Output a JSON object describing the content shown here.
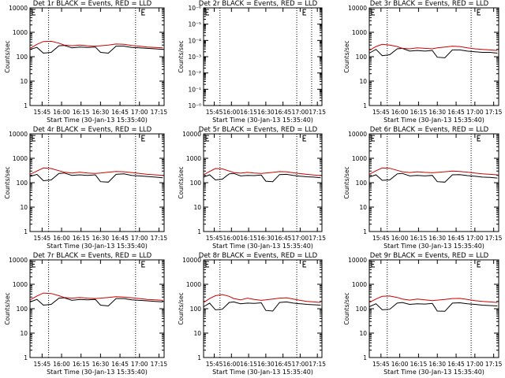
{
  "figure": {
    "xlabel": "Start Time (30-Jan-13 15:35:40)",
    "ylabel": "Counts/sec"
  },
  "chart_data": [
    {
      "type": "line",
      "title": "Det 1r BLACK = Events, RED = LLD",
      "xlabel": "Start Time (30-Jan-13 15:35:40)",
      "ylabel": "Counts/sec",
      "x_ticks": [
        "15:45",
        "16:00",
        "16:15",
        "16:30",
        "16:45",
        "17:00",
        "17:15"
      ],
      "y_ticks": [
        "1",
        "10",
        "100",
        "1000",
        "10000"
      ],
      "ylim": [
        1,
        10000
      ],
      "yscale": "log",
      "dotted_vlines": [
        "15:50",
        "16:57"
      ],
      "series": [
        {
          "color": "#000000",
          "x": [
            "15:35",
            "15:41",
            "15:46",
            "15:52",
            "15:58",
            "16:02",
            "16:08",
            "16:14",
            "16:20",
            "16:26",
            "16:30",
            "16:36",
            "16:42",
            "16:48",
            "16:54",
            "17:00",
            "17:06",
            "17:12",
            "17:18"
          ],
          "values": [
            200,
            240,
            140,
            150,
            280,
            290,
            230,
            250,
            240,
            250,
            150,
            140,
            270,
            270,
            240,
            230,
            220,
            210,
            200
          ]
        },
        {
          "color": "#cc0000",
          "x": [
            "15:35",
            "15:41",
            "15:46",
            "15:52",
            "15:58",
            "16:02",
            "16:08",
            "16:14",
            "16:20",
            "16:26",
            "16:30",
            "16:36",
            "16:42",
            "16:48",
            "16:54",
            "17:00",
            "17:06",
            "17:12",
            "17:18"
          ],
          "values": [
            220,
            320,
            420,
            430,
            360,
            300,
            280,
            300,
            280,
            270,
            280,
            300,
            330,
            320,
            290,
            270,
            250,
            240,
            230
          ]
        }
      ]
    },
    {
      "type": "line",
      "title": "Det 2r BLACK = Events, RED = LLD",
      "xlabel": "Start Time (30-Jan-13 15:35:40)",
      "ylabel": "Counts/sec",
      "x_ticks": [
        "15:45",
        "16:00",
        "16:15",
        "16:30",
        "16:45",
        "17:00",
        "17:15"
      ],
      "y_ticks": [
        "10⁻⁰",
        "10⁻¹",
        "10⁻²",
        "10⁻³",
        "10⁻⁴",
        "10⁻⁵",
        "10⁻⁶"
      ],
      "ylim": [
        1e-06,
        1
      ],
      "yscale": "log",
      "dotted_vlines": [
        "15:50",
        "16:57",
        "17:10"
      ],
      "series": []
    },
    {
      "type": "line",
      "title": "Det 3r BLACK = Events, RED = LLD",
      "xlabel": "Start Time (30-Jan-13 15:35:40)",
      "ylabel": "Counts/sec",
      "x_ticks": [
        "15:45",
        "16:00",
        "16:15",
        "16:30",
        "16:45",
        "17:00",
        "17:15"
      ],
      "y_ticks": [
        "1",
        "10",
        "100",
        "1000",
        "10000"
      ],
      "ylim": [
        1,
        10000
      ],
      "yscale": "log",
      "dotted_vlines": [
        "15:50",
        "16:57"
      ],
      "series": [
        {
          "color": "#000000",
          "x": [
            "15:35",
            "15:41",
            "15:46",
            "15:52",
            "15:58",
            "16:02",
            "16:08",
            "16:14",
            "16:20",
            "16:26",
            "16:30",
            "16:36",
            "16:42",
            "16:48",
            "16:54",
            "17:00",
            "17:06",
            "17:12",
            "17:18"
          ],
          "values": [
            140,
            200,
            110,
            120,
            210,
            220,
            170,
            180,
            170,
            180,
            95,
            90,
            190,
            190,
            170,
            160,
            150,
            150,
            140
          ]
        },
        {
          "color": "#cc0000",
          "x": [
            "15:35",
            "15:41",
            "15:46",
            "15:52",
            "15:58",
            "16:02",
            "16:08",
            "16:14",
            "16:20",
            "16:26",
            "16:30",
            "16:36",
            "16:42",
            "16:48",
            "16:54",
            "17:00",
            "17:06",
            "17:12",
            "17:18"
          ],
          "values": [
            180,
            260,
            320,
            300,
            260,
            220,
            210,
            230,
            220,
            210,
            230,
            250,
            270,
            260,
            230,
            210,
            200,
            190,
            180
          ]
        }
      ]
    },
    {
      "type": "line",
      "title": "Det 4r BLACK = Events, RED = LLD",
      "xlabel": "Start Time (30-Jan-13 15:35:40)",
      "ylabel": "Counts/sec",
      "x_ticks": [
        "15:45",
        "16:00",
        "16:15",
        "16:30",
        "16:45",
        "17:00",
        "17:15"
      ],
      "y_ticks": [
        "1",
        "10",
        "100",
        "1000",
        "10000"
      ],
      "ylim": [
        1,
        10000
      ],
      "yscale": "log",
      "dotted_vlines": [
        "15:50",
        "16:57"
      ],
      "series": [
        {
          "color": "#000000",
          "x": [
            "15:35",
            "15:41",
            "15:46",
            "15:52",
            "15:58",
            "16:02",
            "16:08",
            "16:14",
            "16:20",
            "16:26",
            "16:30",
            "16:36",
            "16:42",
            "16:48",
            "16:54",
            "17:00",
            "17:06",
            "17:12",
            "17:18"
          ],
          "values": [
            180,
            220,
            120,
            130,
            240,
            250,
            200,
            210,
            200,
            210,
            110,
            105,
            220,
            230,
            200,
            190,
            180,
            170,
            160
          ]
        },
        {
          "color": "#cc0000",
          "x": [
            "15:35",
            "15:41",
            "15:46",
            "15:52",
            "15:58",
            "16:02",
            "16:08",
            "16:14",
            "16:20",
            "16:26",
            "16:30",
            "16:36",
            "16:42",
            "16:48",
            "16:54",
            "17:00",
            "17:06",
            "17:12",
            "17:18"
          ],
          "values": [
            220,
            300,
            400,
            380,
            310,
            270,
            250,
            270,
            250,
            240,
            250,
            270,
            290,
            280,
            260,
            240,
            220,
            210,
            200
          ]
        }
      ]
    },
    {
      "type": "line",
      "title": "Det 5r BLACK = Events, RED = LLD",
      "xlabel": "Start Time (30-Jan-13 15:35:40)",
      "ylabel": "Counts/sec",
      "x_ticks": [
        "15:45",
        "16:00",
        "16:15",
        "16:30",
        "16:45",
        "17:00",
        "17:15"
      ],
      "y_ticks": [
        "1",
        "10",
        "100",
        "1000",
        "10000"
      ],
      "ylim": [
        1,
        10000
      ],
      "yscale": "log",
      "dotted_vlines": [
        "15:50",
        "16:57"
      ],
      "series": [
        {
          "color": "#000000",
          "x": [
            "15:35",
            "15:41",
            "15:46",
            "15:52",
            "15:58",
            "16:02",
            "16:08",
            "16:14",
            "16:20",
            "16:26",
            "16:30",
            "16:36",
            "16:42",
            "16:48",
            "16:54",
            "17:00",
            "17:06",
            "17:12",
            "17:18"
          ],
          "values": [
            170,
            210,
            130,
            140,
            230,
            240,
            190,
            200,
            195,
            205,
            115,
            110,
            215,
            220,
            200,
            185,
            175,
            170,
            160
          ]
        },
        {
          "color": "#cc0000",
          "x": [
            "15:35",
            "15:41",
            "15:46",
            "15:52",
            "15:58",
            "16:02",
            "16:08",
            "16:14",
            "16:20",
            "16:26",
            "16:30",
            "16:36",
            "16:42",
            "16:48",
            "16:54",
            "17:00",
            "17:06",
            "17:12",
            "17:18"
          ],
          "values": [
            210,
            290,
            380,
            370,
            300,
            260,
            245,
            265,
            250,
            240,
            250,
            265,
            285,
            280,
            255,
            235,
            220,
            205,
            195
          ]
        }
      ]
    },
    {
      "type": "line",
      "title": "Det 6r BLACK = Events, RED = LLD",
      "xlabel": "Start Time (30-Jan-13 15:35:40)",
      "ylabel": "Counts/sec",
      "x_ticks": [
        "15:45",
        "16:00",
        "16:15",
        "16:30",
        "16:45",
        "17:00",
        "17:15"
      ],
      "y_ticks": [
        "1",
        "10",
        "100",
        "1000",
        "10000"
      ],
      "ylim": [
        1,
        10000
      ],
      "yscale": "log",
      "dotted_vlines": [
        "15:50",
        "16:57"
      ],
      "series": [
        {
          "color": "#000000",
          "x": [
            "15:35",
            "15:41",
            "15:46",
            "15:52",
            "15:58",
            "16:02",
            "16:08",
            "16:14",
            "16:20",
            "16:26",
            "16:30",
            "16:36",
            "16:42",
            "16:48",
            "16:54",
            "17:00",
            "17:06",
            "17:12",
            "17:18"
          ],
          "values": [
            170,
            210,
            125,
            130,
            230,
            240,
            190,
            200,
            190,
            200,
            110,
            105,
            210,
            215,
            195,
            185,
            170,
            165,
            155
          ]
        },
        {
          "color": "#cc0000",
          "x": [
            "15:35",
            "15:41",
            "15:46",
            "15:52",
            "15:58",
            "16:02",
            "16:08",
            "16:14",
            "16:20",
            "16:26",
            "16:30",
            "16:36",
            "16:42",
            "16:48",
            "16:54",
            "17:00",
            "17:06",
            "17:12",
            "17:18"
          ],
          "values": [
            220,
            310,
            400,
            390,
            320,
            280,
            260,
            280,
            265,
            255,
            265,
            280,
            300,
            290,
            270,
            250,
            230,
            220,
            210
          ]
        }
      ]
    },
    {
      "type": "line",
      "title": "Det 7r BLACK = Events, RED = LLD",
      "xlabel": "Start Time (30-Jan-13 15:35:40)",
      "ylabel": "Counts/sec",
      "x_ticks": [
        "15:45",
        "16:00",
        "16:15",
        "16:30",
        "16:45",
        "17:00",
        "17:15"
      ],
      "y_ticks": [
        "1",
        "10",
        "100",
        "1000",
        "10000"
      ],
      "ylim": [
        1,
        10000
      ],
      "yscale": "log",
      "dotted_vlines": [
        "15:50",
        "16:57"
      ],
      "series": [
        {
          "color": "#000000",
          "x": [
            "15:35",
            "15:41",
            "15:46",
            "15:52",
            "15:58",
            "16:02",
            "16:08",
            "16:14",
            "16:20",
            "16:26",
            "16:30",
            "16:36",
            "16:42",
            "16:48",
            "16:54",
            "17:00",
            "17:06",
            "17:12",
            "17:18"
          ],
          "values": [
            190,
            240,
            140,
            150,
            270,
            280,
            220,
            240,
            230,
            240,
            140,
            130,
            260,
            260,
            230,
            220,
            210,
            200,
            190
          ]
        },
        {
          "color": "#cc0000",
          "x": [
            "15:35",
            "15:41",
            "15:46",
            "15:52",
            "15:58",
            "16:02",
            "16:08",
            "16:14",
            "16:20",
            "16:26",
            "16:30",
            "16:36",
            "16:42",
            "16:48",
            "16:54",
            "17:00",
            "17:06",
            "17:12",
            "17:18"
          ],
          "values": [
            230,
            330,
            440,
            420,
            340,
            290,
            270,
            290,
            270,
            260,
            270,
            290,
            310,
            300,
            280,
            260,
            240,
            230,
            220
          ]
        }
      ]
    },
    {
      "type": "line",
      "title": "Det 8r BLACK = Events, RED = LLD",
      "xlabel": "Start Time (30-Jan-13 15:35:40)",
      "ylabel": "Counts/sec",
      "x_ticks": [
        "15:45",
        "16:00",
        "16:15",
        "16:30",
        "16:45",
        "17:00",
        "17:15"
      ],
      "y_ticks": [
        "1",
        "10",
        "100",
        "1000",
        "10000"
      ],
      "ylim": [
        1,
        10000
      ],
      "yscale": "log",
      "dotted_vlines": [
        "15:50",
        "16:57"
      ],
      "series": [
        {
          "color": "#000000",
          "x": [
            "15:35",
            "15:41",
            "15:46",
            "15:52",
            "15:58",
            "16:02",
            "16:08",
            "16:14",
            "16:20",
            "16:26",
            "16:30",
            "16:36",
            "16:42",
            "16:48",
            "16:54",
            "17:00",
            "17:06",
            "17:12",
            "17:18"
          ],
          "values": [
            120,
            170,
            90,
            95,
            180,
            190,
            160,
            170,
            165,
            175,
            85,
            80,
            180,
            190,
            170,
            160,
            150,
            145,
            140
          ]
        },
        {
          "color": "#cc0000",
          "x": [
            "15:35",
            "15:41",
            "15:46",
            "15:52",
            "15:58",
            "16:02",
            "16:08",
            "16:14",
            "16:20",
            "16:26",
            "16:30",
            "16:36",
            "16:42",
            "16:48",
            "16:54",
            "17:00",
            "17:06",
            "17:12",
            "17:18"
          ],
          "values": [
            180,
            260,
            340,
            380,
            320,
            260,
            230,
            270,
            240,
            220,
            230,
            250,
            270,
            280,
            250,
            220,
            200,
            190,
            180
          ]
        }
      ]
    },
    {
      "type": "line",
      "title": "Det 9r BLACK = Events, RED = LLD",
      "xlabel": "Start Time (30-Jan-13 15:35:40)",
      "ylabel": "Counts/sec",
      "x_ticks": [
        "15:45",
        "16:00",
        "16:15",
        "16:30",
        "16:45",
        "17:00",
        "17:15"
      ],
      "y_ticks": [
        "1",
        "10",
        "100",
        "1000",
        "10000"
      ],
      "ylim": [
        1,
        10000
      ],
      "yscale": "log",
      "dotted_vlines": [
        "15:50",
        "16:57"
      ],
      "series": [
        {
          "color": "#000000",
          "x": [
            "15:35",
            "15:41",
            "15:46",
            "15:52",
            "15:58",
            "16:02",
            "16:08",
            "16:14",
            "16:20",
            "16:26",
            "16:30",
            "16:36",
            "16:42",
            "16:48",
            "16:54",
            "17:00",
            "17:06",
            "17:12",
            "17:18"
          ],
          "values": [
            120,
            160,
            90,
            95,
            170,
            180,
            150,
            160,
            155,
            165,
            80,
            78,
            170,
            175,
            160,
            150,
            140,
            135,
            130
          ]
        },
        {
          "color": "#cc0000",
          "x": [
            "15:35",
            "15:41",
            "15:46",
            "15:52",
            "15:58",
            "16:02",
            "16:08",
            "16:14",
            "16:20",
            "16:26",
            "16:30",
            "16:36",
            "16:42",
            "16:48",
            "16:54",
            "17:00",
            "17:06",
            "17:12",
            "17:18"
          ],
          "values": [
            180,
            250,
            320,
            330,
            290,
            250,
            225,
            250,
            230,
            215,
            225,
            240,
            260,
            265,
            240,
            215,
            200,
            190,
            180
          ]
        }
      ]
    }
  ]
}
